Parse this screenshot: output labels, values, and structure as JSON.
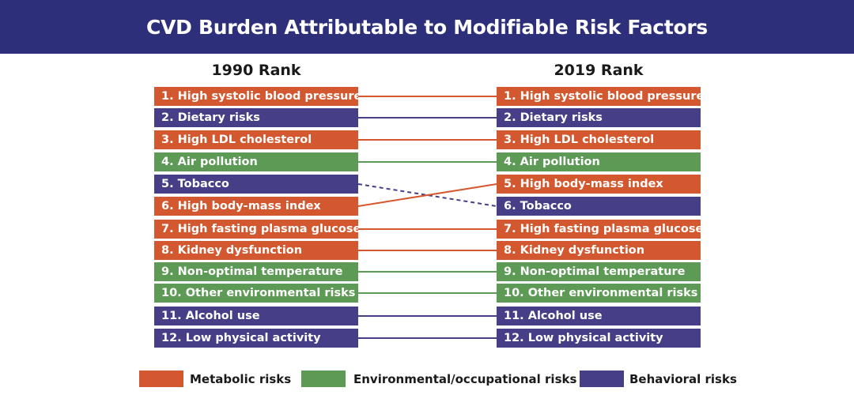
{
  "title": "CVD Burden Attributable to Modifiable Risk Factors",
  "left_header": "1990 Rank",
  "right_header": "2019 Rank",
  "colors": {
    "title_bg": "#2e2f7a",
    "metabolic": "#d4582f",
    "environmental": "#5c9a55",
    "behavioral": "#463f87"
  },
  "rank_1990": [
    {
      "label": "1. High systolic blood pressure",
      "category": "metabolic"
    },
    {
      "label": "2. Dietary risks",
      "category": "behavioral"
    },
    {
      "label": "3. High LDL cholesterol",
      "category": "metabolic"
    },
    {
      "label": "4. Air pollution",
      "category": "environmental"
    },
    {
      "label": "5. Tobacco",
      "category": "behavioral"
    },
    {
      "label": "6. High body-mass index",
      "category": "metabolic"
    },
    {
      "label": "7. High fasting plasma glucose",
      "category": "metabolic"
    },
    {
      "label": "8. Kidney dysfunction",
      "category": "metabolic"
    },
    {
      "label": "9. Non-optimal temperature",
      "category": "environmental"
    },
    {
      "label": "10. Other environmental risks",
      "category": "environmental"
    },
    {
      "label": "11. Alcohol use",
      "category": "behavioral"
    },
    {
      "label": "12. Low physical activity",
      "category": "behavioral"
    }
  ],
  "rank_2019": [
    {
      "label": "1. High systolic blood pressure",
      "category": "metabolic"
    },
    {
      "label": "2. Dietary risks",
      "category": "behavioral"
    },
    {
      "label": "3. High LDL cholesterol",
      "category": "metabolic"
    },
    {
      "label": "4. Air pollution",
      "category": "environmental"
    },
    {
      "label": "5. High body-mass index",
      "category": "metabolic"
    },
    {
      "label": "6. Tobacco",
      "category": "behavioral"
    },
    {
      "label": "7. High fasting plasma glucose",
      "category": "metabolic"
    },
    {
      "label": "8. Kidney dysfunction",
      "category": "metabolic"
    },
    {
      "label": "9. Non-optimal temperature",
      "category": "environmental"
    },
    {
      "label": "10. Other environmental risks",
      "category": "environmental"
    },
    {
      "label": "11. Alcohol use",
      "category": "behavioral"
    },
    {
      "label": "12. Low physical activity",
      "category": "behavioral"
    }
  ],
  "links": [
    {
      "from": 1,
      "to": 1,
      "category": "metabolic",
      "dashed": false
    },
    {
      "from": 2,
      "to": 2,
      "category": "behavioral",
      "dashed": false
    },
    {
      "from": 3,
      "to": 3,
      "category": "metabolic",
      "dashed": false
    },
    {
      "from": 4,
      "to": 4,
      "category": "environmental",
      "dashed": false
    },
    {
      "from": 5,
      "to": 6,
      "category": "behavioral",
      "dashed": true
    },
    {
      "from": 6,
      "to": 5,
      "category": "metabolic",
      "dashed": false
    },
    {
      "from": 7,
      "to": 7,
      "category": "metabolic",
      "dashed": false
    },
    {
      "from": 8,
      "to": 8,
      "category": "metabolic",
      "dashed": false
    },
    {
      "from": 9,
      "to": 9,
      "category": "environmental",
      "dashed": false
    },
    {
      "from": 10,
      "to": 10,
      "category": "environmental",
      "dashed": false
    },
    {
      "from": 11,
      "to": 11,
      "category": "behavioral",
      "dashed": false
    },
    {
      "from": 12,
      "to": 12,
      "category": "behavioral",
      "dashed": false
    }
  ],
  "legend": [
    {
      "label": "Metabolic risks",
      "category": "metabolic"
    },
    {
      "label": "Environmental/occupational risks",
      "category": "environmental"
    },
    {
      "label": "Behavioral risks",
      "category": "behavioral"
    }
  ]
}
